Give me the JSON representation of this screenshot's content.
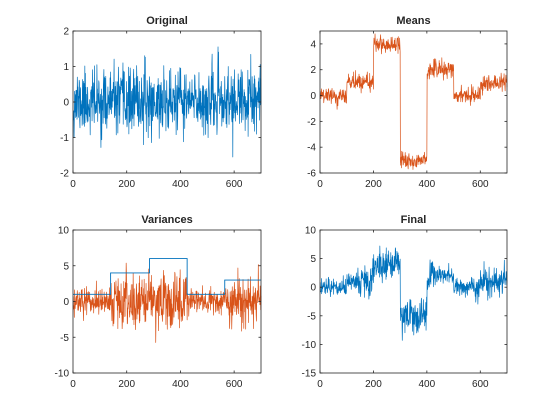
{
  "figure": {
    "background": "#ffffff",
    "axis_color": "#262626",
    "blue": "#0072BD",
    "orange": "#D95319"
  },
  "chart_data": [
    {
      "type": "line",
      "title": "Original",
      "xlim": [
        0,
        700
      ],
      "ylim": [
        -2,
        2
      ],
      "xticks": [
        0,
        200,
        400,
        600
      ],
      "yticks": [
        -2,
        -1,
        0,
        1,
        2
      ],
      "series": [
        {
          "color": "#0072BD",
          "description": "noise around 0, sd~0.5, range about -1.5 to 1.7, n=700"
        }
      ]
    },
    {
      "type": "line",
      "title": "Means",
      "xlim": [
        0,
        700
      ],
      "ylim": [
        -6,
        5
      ],
      "xticks": [
        0,
        200,
        400,
        600
      ],
      "yticks": [
        -6,
        -4,
        -2,
        0,
        2,
        4
      ],
      "series": [
        {
          "color": "#D95319",
          "segments": [
            {
              "x": [
                0,
                100
              ],
              "mean": 0.0
            },
            {
              "x": [
                100,
                200
              ],
              "mean": 1.0
            },
            {
              "x": [
                200,
                300
              ],
              "mean": 4.0
            },
            {
              "x": [
                300,
                400
              ],
              "mean": -5.0
            },
            {
              "x": [
                400,
                500
              ],
              "mean": 2.0
            },
            {
              "x": [
                500,
                600
              ],
              "mean": 0.0
            },
            {
              "x": [
                600,
                700
              ],
              "mean": 1.0
            }
          ]
        }
      ]
    },
    {
      "type": "line",
      "title": "Variances",
      "xlim": [
        0,
        700
      ],
      "ylim": [
        -10,
        10
      ],
      "xticks": [
        0,
        200,
        400,
        600
      ],
      "yticks": [
        -10,
        -5,
        0,
        5,
        10
      ],
      "series": [
        {
          "color": "#0072BD",
          "style": "step",
          "steps": [
            {
              "x": [
                0,
                140
              ],
              "value": 1
            },
            {
              "x": [
                140,
                285
              ],
              "value": 4
            },
            {
              "x": [
                285,
                425
              ],
              "value": 6
            },
            {
              "x": [
                425,
                565
              ],
              "value": 1
            },
            {
              "x": [
                565,
                700
              ],
              "value": 3
            }
          ]
        },
        {
          "color": "#D95319",
          "description": "zero-mean noise whose spread follows the step levels"
        }
      ]
    },
    {
      "type": "line",
      "title": "Final",
      "xlim": [
        0,
        700
      ],
      "ylim": [
        -15,
        10
      ],
      "xticks": [
        0,
        200,
        400,
        600
      ],
      "yticks": [
        -15,
        -10,
        -5,
        0,
        5,
        10
      ],
      "series": [
        {
          "color": "#0072BD",
          "description": "mean-shifted and variance-changing signal"
        }
      ]
    }
  ]
}
